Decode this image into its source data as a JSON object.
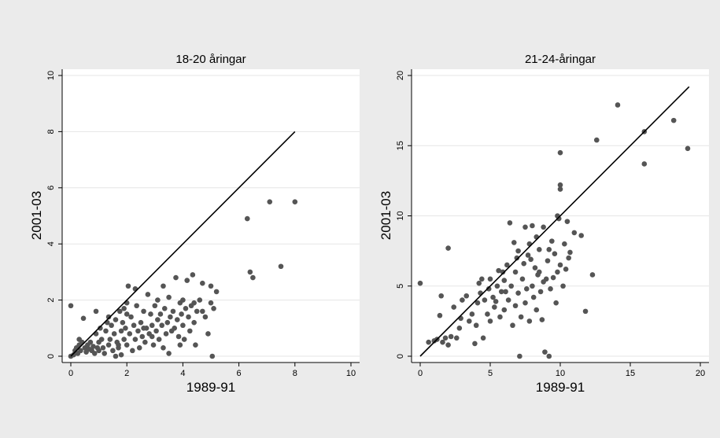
{
  "chart_data": [
    {
      "type": "scatter",
      "title": "18-20 åringar",
      "xlabel": "1989-91",
      "ylabel": "2001-03",
      "xlim": [
        0,
        10
      ],
      "ylim": [
        0,
        10
      ],
      "xticks": [
        0,
        2,
        4,
        6,
        8,
        10
      ],
      "yticks": [
        0,
        2,
        4,
        6,
        8,
        10
      ],
      "grid": true,
      "reference_line": [
        [
          0,
          0
        ],
        [
          8,
          8
        ]
      ],
      "points": [
        [
          0,
          1.8
        ],
        [
          0,
          0
        ],
        [
          0.1,
          0.05
        ],
        [
          0.15,
          0.2
        ],
        [
          0.2,
          0.3
        ],
        [
          0.25,
          0.1
        ],
        [
          0.3,
          0.4
        ],
        [
          0.3,
          0.6
        ],
        [
          0.35,
          0.2
        ],
        [
          0.4,
          0.5
        ],
        [
          0.45,
          1.35
        ],
        [
          0.5,
          0.3
        ],
        [
          0.55,
          0.15
        ],
        [
          0.6,
          0.4
        ],
        [
          0.65,
          0.25
        ],
        [
          0.7,
          0.5
        ],
        [
          0.75,
          0.2
        ],
        [
          0.8,
          0.35
        ],
        [
          0.85,
          0.1
        ],
        [
          0.9,
          0.8
        ],
        [
          0.9,
          1.6
        ],
        [
          0.95,
          0.3
        ],
        [
          1.0,
          0.5
        ],
        [
          1.0,
          0.2
        ],
        [
          1.05,
          1.0
        ],
        [
          1.1,
          0.6
        ],
        [
          1.15,
          0.3
        ],
        [
          1.2,
          0.1
        ],
        [
          1.25,
          0.9
        ],
        [
          1.3,
          1.2
        ],
        [
          1.35,
          0.4
        ],
        [
          1.35,
          1.4
        ],
        [
          1.4,
          0.6
        ],
        [
          1.45,
          1.1
        ],
        [
          1.5,
          0.2
        ],
        [
          1.55,
          0.8
        ],
        [
          1.6,
          0.0
        ],
        [
          1.6,
          1.3
        ],
        [
          1.65,
          0.5
        ],
        [
          1.7,
          0.3
        ],
        [
          1.75,
          1.6
        ],
        [
          1.8,
          0.9
        ],
        [
          1.8,
          0.05
        ],
        [
          1.85,
          1.2
        ],
        [
          1.9,
          0.6
        ],
        [
          1.95,
          1.0
        ],
        [
          2.0,
          1.9
        ],
        [
          2.0,
          0.4
        ],
        [
          2.05,
          2.5
        ],
        [
          2.1,
          0.8
        ],
        [
          2.15,
          1.4
        ],
        [
          2.2,
          0.2
        ],
        [
          2.25,
          1.1
        ],
        [
          2.3,
          0.6
        ],
        [
          2.35,
          1.8
        ],
        [
          2.4,
          0.9
        ],
        [
          2.45,
          0.3
        ],
        [
          2.5,
          1.2
        ],
        [
          2.55,
          0.7
        ],
        [
          2.6,
          1.6
        ],
        [
          2.65,
          0.5
        ],
        [
          2.7,
          1.0
        ],
        [
          2.75,
          2.2
        ],
        [
          2.8,
          0.8
        ],
        [
          2.85,
          1.5
        ],
        [
          2.9,
          1.1
        ],
        [
          2.95,
          0.4
        ],
        [
          3.0,
          1.8
        ],
        [
          3.05,
          0.9
        ],
        [
          3.1,
          1.3
        ],
        [
          3.1,
          2.0
        ],
        [
          3.15,
          0.6
        ],
        [
          3.2,
          1.5
        ],
        [
          3.25,
          1.1
        ],
        [
          3.3,
          0.3
        ],
        [
          3.35,
          1.7
        ],
        [
          3.4,
          0.8
        ],
        [
          3.45,
          1.2
        ],
        [
          3.5,
          0.1
        ],
        [
          3.5,
          2.1
        ],
        [
          3.55,
          1.4
        ],
        [
          3.6,
          0.9
        ],
        [
          3.65,
          1.6
        ],
        [
          3.7,
          1.0
        ],
        [
          3.75,
          2.8
        ],
        [
          3.8,
          1.3
        ],
        [
          3.85,
          0.7
        ],
        [
          3.9,
          1.9
        ],
        [
          3.95,
          1.5
        ],
        [
          4.0,
          2.0
        ],
        [
          4.0,
          1.1
        ],
        [
          4.05,
          0.6
        ],
        [
          4.1,
          1.7
        ],
        [
          4.15,
          2.7
        ],
        [
          4.2,
          1.4
        ],
        [
          4.25,
          0.9
        ],
        [
          4.3,
          1.8
        ],
        [
          4.35,
          2.9
        ],
        [
          4.4,
          1.2
        ],
        [
          4.45,
          0.4
        ],
        [
          4.5,
          1.6
        ],
        [
          4.6,
          2.0
        ],
        [
          4.7,
          2.6
        ],
        [
          4.8,
          1.4
        ],
        [
          4.9,
          0.8
        ],
        [
          5.0,
          1.9
        ],
        [
          5.0,
          2.5
        ],
        [
          5.05,
          0.0
        ],
        [
          5.1,
          1.7
        ],
        [
          5.2,
          2.3
        ],
        [
          2.3,
          2.4
        ],
        [
          2.0,
          1.5
        ],
        [
          1.7,
          0.4
        ],
        [
          1.9,
          1.7
        ],
        [
          2.6,
          1.0
        ],
        [
          2.9,
          0.7
        ],
        [
          3.3,
          2.5
        ],
        [
          3.9,
          0.4
        ],
        [
          4.4,
          1.9
        ],
        [
          4.7,
          1.6
        ],
        [
          6.5,
          2.8
        ],
        [
          6.4,
          3.0
        ],
        [
          6.3,
          4.9
        ],
        [
          7.1,
          5.5
        ],
        [
          7.5,
          3.2
        ],
        [
          8.0,
          5.5
        ]
      ]
    },
    {
      "type": "scatter",
      "title": "21-24-åringar",
      "xlabel": "1989-91",
      "ylabel": "2001-03",
      "xlim": [
        0,
        20
      ],
      "ylim": [
        0,
        20
      ],
      "xticks": [
        0,
        5,
        10,
        15,
        20
      ],
      "yticks": [
        0,
        5,
        10,
        15,
        20
      ],
      "grid": true,
      "reference_line": [
        [
          0,
          0
        ],
        [
          19.2,
          19.2
        ]
      ],
      "points": [
        [
          0,
          5.2
        ],
        [
          0.6,
          1.0
        ],
        [
          1.0,
          1.1
        ],
        [
          1.2,
          1.2
        ],
        [
          1.4,
          2.9
        ],
        [
          1.5,
          4.3
        ],
        [
          1.6,
          1.0
        ],
        [
          1.8,
          1.3
        ],
        [
          2.0,
          0.8
        ],
        [
          2.0,
          7.7
        ],
        [
          2.2,
          1.4
        ],
        [
          2.4,
          3.5
        ],
        [
          2.6,
          1.3
        ],
        [
          2.8,
          2.0
        ],
        [
          3.0,
          4.0
        ],
        [
          3.5,
          2.5
        ],
        [
          3.7,
          3.0
        ],
        [
          3.9,
          0.9
        ],
        [
          4.0,
          2.2
        ],
        [
          4.1,
          3.8
        ],
        [
          4.2,
          5.2
        ],
        [
          4.3,
          4.5
        ],
        [
          4.4,
          5.5
        ],
        [
          4.5,
          1.3
        ],
        [
          4.6,
          4.0
        ],
        [
          4.8,
          3.0
        ],
        [
          5.0,
          5.5
        ],
        [
          5.0,
          2.5
        ],
        [
          5.2,
          4.2
        ],
        [
          5.3,
          3.5
        ],
        [
          5.5,
          5.0
        ],
        [
          5.6,
          6.1
        ],
        [
          5.7,
          2.8
        ],
        [
          5.8,
          4.6
        ],
        [
          6.0,
          3.3
        ],
        [
          6.0,
          5.4
        ],
        [
          6.2,
          6.5
        ],
        [
          6.3,
          4.0
        ],
        [
          6.4,
          9.5
        ],
        [
          6.5,
          5.0
        ],
        [
          6.6,
          2.2
        ],
        [
          6.8,
          3.6
        ],
        [
          6.8,
          6.0
        ],
        [
          7.0,
          4.5
        ],
        [
          7.0,
          7.5
        ],
        [
          7.1,
          0.0
        ],
        [
          7.2,
          2.8
        ],
        [
          7.3,
          5.5
        ],
        [
          7.4,
          6.6
        ],
        [
          7.5,
          3.8
        ],
        [
          7.6,
          4.8
        ],
        [
          7.7,
          7.2
        ],
        [
          7.8,
          2.5
        ],
        [
          7.8,
          8.0
        ],
        [
          8.0,
          5.0
        ],
        [
          8.0,
          9.3
        ],
        [
          8.1,
          4.2
        ],
        [
          8.2,
          6.3
        ],
        [
          8.3,
          3.3
        ],
        [
          8.4,
          5.8
        ],
        [
          8.5,
          7.6
        ],
        [
          8.6,
          4.6
        ],
        [
          8.7,
          2.6
        ],
        [
          8.8,
          9.2
        ],
        [
          8.9,
          0.3
        ],
        [
          9.0,
          5.5
        ],
        [
          9.1,
          6.8
        ],
        [
          9.2,
          0.0
        ],
        [
          9.3,
          4.8
        ],
        [
          9.4,
          8.2
        ],
        [
          9.5,
          5.6
        ],
        [
          9.6,
          7.3
        ],
        [
          9.7,
          3.8
        ],
        [
          9.8,
          6.0
        ],
        [
          9.9,
          9.8
        ],
        [
          10.0,
          6.5
        ],
        [
          10.0,
          14.5
        ],
        [
          10.0,
          12.2
        ],
        [
          10.0,
          11.9
        ],
        [
          10.2,
          5.0
        ],
        [
          10.3,
          8.0
        ],
        [
          10.4,
          6.2
        ],
        [
          10.5,
          9.6
        ],
        [
          10.7,
          7.4
        ],
        [
          11.0,
          8.8
        ],
        [
          11.5,
          8.6
        ],
        [
          11.8,
          3.2
        ],
        [
          12.3,
          5.8
        ],
        [
          12.6,
          15.4
        ],
        [
          14.1,
          17.9
        ],
        [
          16.0,
          16.0
        ],
        [
          16.0,
          13.7
        ],
        [
          18.1,
          16.8
        ],
        [
          19.1,
          14.8
        ],
        [
          6.9,
          7.0
        ],
        [
          7.5,
          9.2
        ],
        [
          8.5,
          6.0
        ],
        [
          6.1,
          4.6
        ],
        [
          5.4,
          3.9
        ],
        [
          9.8,
          10.0
        ],
        [
          8.3,
          8.5
        ],
        [
          7.9,
          6.9
        ],
        [
          6.7,
          8.1
        ],
        [
          10.6,
          7.0
        ],
        [
          4.9,
          4.8
        ],
        [
          5.9,
          6.0
        ],
        [
          3.3,
          4.3
        ],
        [
          2.9,
          2.7
        ],
        [
          8.8,
          5.3
        ],
        [
          9.2,
          7.6
        ]
      ]
    }
  ]
}
